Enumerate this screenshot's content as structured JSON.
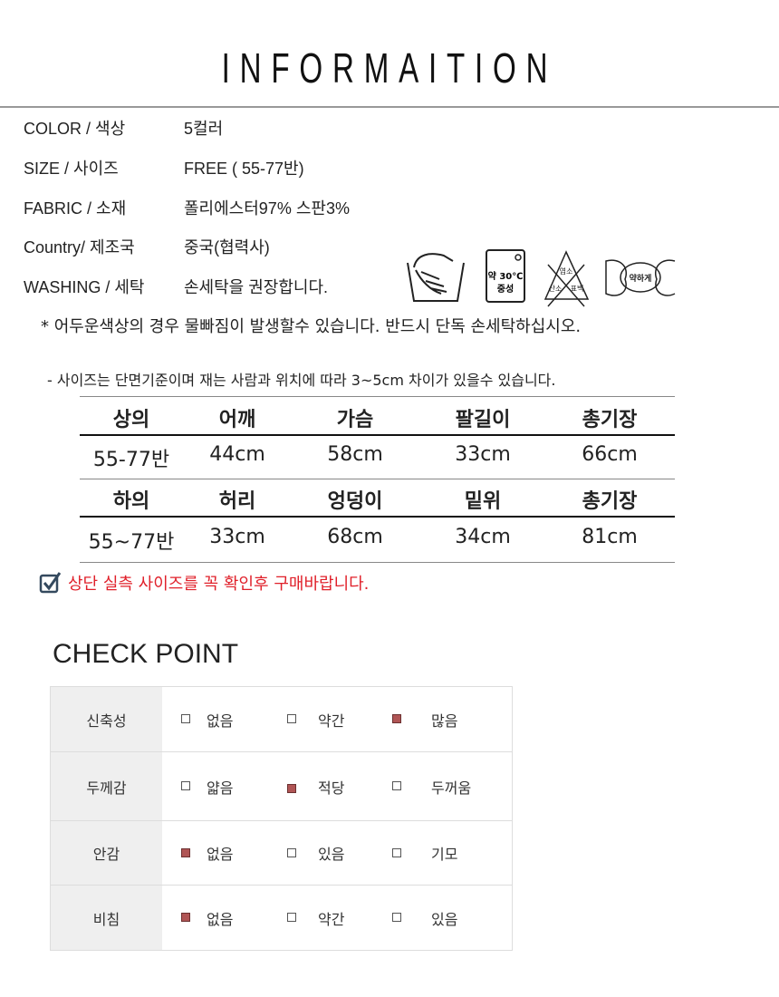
{
  "title": "INFORMAITION",
  "info": [
    {
      "label": "COLOR / 색상",
      "value": "5컬러"
    },
    {
      "label": "SIZE  / 사이즈",
      "value": "FREE  ( 55-77반)"
    },
    {
      "label": "FABRIC  / 소재",
      "value": "폴리에스터97% 스판3%"
    },
    {
      "label": "Country/ 제조국",
      "value": "중국(협력사)"
    },
    {
      "label": "WASHING / 세탁",
      "value": "손세탁을 권장합니다."
    }
  ],
  "wash_icons": {
    "hand_wash": "hand-wash-icon",
    "machine": {
      "line1": "약 30℃",
      "line2": "중성"
    },
    "no_bleach": {
      "top": "염소",
      "left": "산소",
      "right": "표백"
    },
    "wring": "약하게"
  },
  "note_wash": "* 어두운색상의 경우 물빠짐이 발생할수 있습니다.  반드시 단독 손세탁하십시오.",
  "note_size": "-  사이즈는 단면기준이며 재는 사람과 위치에  따라 3~5cm 차이가 있을수 있습니다.",
  "size_table": {
    "top_header": [
      "상의",
      "어깨",
      "가슴",
      "팔길이",
      "총기장"
    ],
    "top_row": [
      "55-77반",
      "44cm",
      "58cm",
      "33cm",
      "66cm"
    ],
    "bottom_header": [
      "하의",
      "허리",
      "엉덩이",
      "밑위",
      "총기장"
    ],
    "bottom_row": [
      "55~77반",
      "33cm",
      "68cm",
      "34cm",
      "81cm"
    ]
  },
  "notice": "상단 실측 사이즈를 꼭 확인후 구매바랍니다.",
  "notice_color": "#e0202a",
  "check_point": {
    "title": "CHECK POINT",
    "selected_color": "#b05555",
    "rows": [
      {
        "label": "신축성",
        "options": [
          "없음",
          "약간",
          "많음"
        ],
        "selected": 2
      },
      {
        "label": "두께감",
        "options": [
          "얇음",
          "적당",
          "두꺼움"
        ],
        "selected": 1
      },
      {
        "label": "안감",
        "options": [
          "없음",
          "있음",
          "기모"
        ],
        "selected": 0
      },
      {
        "label": "비침",
        "options": [
          "없음",
          "약간",
          "있음"
        ],
        "selected": 0
      }
    ]
  }
}
